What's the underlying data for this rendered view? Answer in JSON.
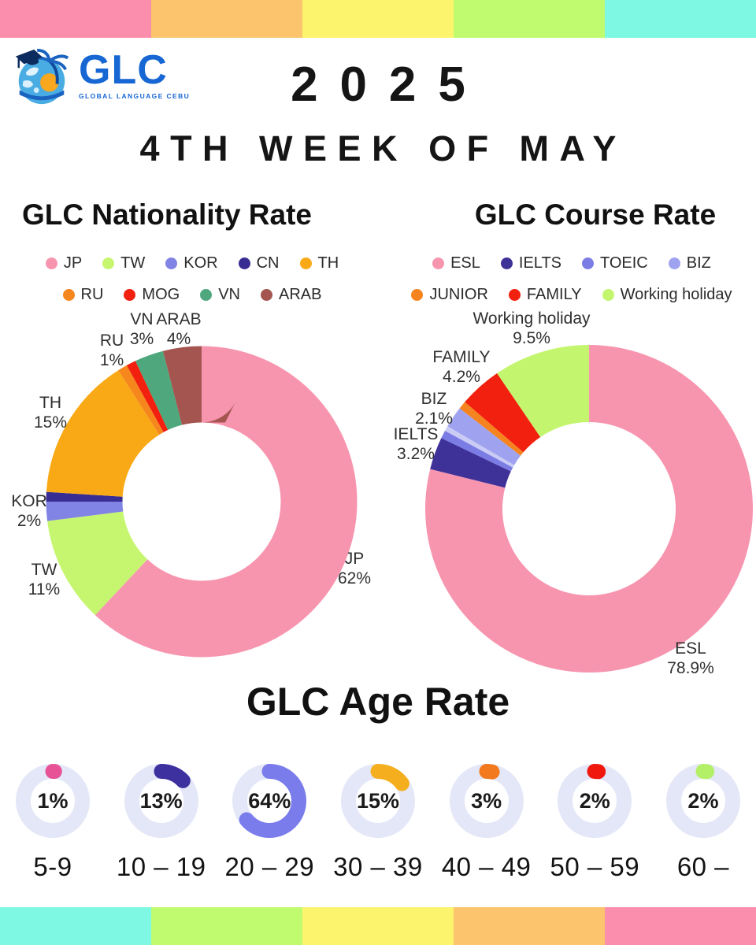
{
  "page": {
    "background": "#FFFFFF"
  },
  "stripes": {
    "top": [
      "#FA8EAC",
      "#FBC46D",
      "#FCF46C",
      "#C0FA6E",
      "#7EF8E2"
    ],
    "bottom": [
      "#7EF8E2",
      "#C0FA6E",
      "#FCF46C",
      "#FBC46D",
      "#FA8EAC"
    ]
  },
  "header": {
    "logo_text": "GLC",
    "logo_subtext": "GLOBAL LANGUAGE CEBU",
    "logo_color": "#1666D3",
    "year": "2025",
    "subtitle": "4TH WEEK OF MAY"
  },
  "chart_data": [
    {
      "id": "nationality",
      "type": "pie",
      "variant": "donut",
      "title": "GLC Nationality Rate",
      "start_angle_deg": 0,
      "direction": "clockwise",
      "hole_ratio": 0.51,
      "legend": [
        {
          "label": "JP",
          "color": "#F795AF"
        },
        {
          "label": "TW",
          "color": "#C6F66F"
        },
        {
          "label": "KOR",
          "color": "#8184E4"
        },
        {
          "label": "CN",
          "color": "#372D92"
        },
        {
          "label": "TH",
          "color": "#FAA916"
        },
        {
          "label": "RU",
          "color": "#F6871D"
        },
        {
          "label": "MOG",
          "color": "#F2200E"
        },
        {
          "label": "VN",
          "color": "#4FA87D"
        },
        {
          "label": "ARAB",
          "color": "#A4554F"
        }
      ],
      "segments": [
        {
          "label": "JP",
          "value": 62,
          "pct_text": "62%",
          "color": "#F795AF",
          "label_shown": true
        },
        {
          "label": "TW",
          "value": 11,
          "pct_text": "11%",
          "color": "#C6F66F",
          "label_shown": true
        },
        {
          "label": "KOR",
          "value": 2,
          "pct_text": "2%",
          "color": "#8184E4",
          "label_shown": true
        },
        {
          "label": "CN",
          "value": 1,
          "pct_text": "",
          "color": "#372D92",
          "label_shown": false
        },
        {
          "label": "TH",
          "value": 15,
          "pct_text": "15%",
          "color": "#FAA916",
          "label_shown": true
        },
        {
          "label": "RU",
          "value": 1,
          "pct_text": "1%",
          "color": "#F6871D",
          "label_shown": true
        },
        {
          "label": "MOG",
          "value": 1,
          "pct_text": "",
          "color": "#F2200E",
          "label_shown": false
        },
        {
          "label": "VN",
          "value": 3,
          "pct_text": "3%",
          "color": "#4FA87D",
          "label_shown": true
        },
        {
          "label": "ARAB",
          "value": 4,
          "pct_text": "4%",
          "color": "#A4554F",
          "label_shown": true
        }
      ]
    },
    {
      "id": "course",
      "type": "pie",
      "variant": "donut",
      "title": "GLC Course Rate",
      "start_angle_deg": 0,
      "direction": "clockwise",
      "hole_ratio": 0.53,
      "legend": [
        {
          "label": "ESL",
          "color": "#F795AF"
        },
        {
          "label": "IELTS",
          "color": "#3E3198"
        },
        {
          "label": "TOEIC",
          "color": "#7B7DE4"
        },
        {
          "label": "BIZ",
          "color": "#9FA3EF"
        },
        {
          "label": "JUNIOR",
          "color": "#F5831F"
        },
        {
          "label": "FAMILY",
          "color": "#F2200E"
        },
        {
          "label": "Working holiday",
          "color": "#C3F66E"
        }
      ],
      "segments": [
        {
          "label": "ESL",
          "value": 78.9,
          "pct_text": "78.9%",
          "color": "#F795AF",
          "label_shown": true
        },
        {
          "label": "IELTS",
          "value": 3.2,
          "pct_text": "3.2%",
          "color": "#3E3198",
          "label_shown": true
        },
        {
          "label": "TOEIC",
          "value": 0.8,
          "pct_text": "",
          "color": "#7B7DE4",
          "label_shown": false
        },
        {
          "label": "",
          "value": 0.5,
          "pct_text": "",
          "color": "#CACCF6",
          "label_shown": false
        },
        {
          "label": "BIZ",
          "value": 2.1,
          "pct_text": "2.1%",
          "color": "#9FA3EF",
          "label_shown": true
        },
        {
          "label": "JUNIOR",
          "value": 0.8,
          "pct_text": "",
          "color": "#F5831F",
          "label_shown": false
        },
        {
          "label": "FAMILY",
          "value": 4.2,
          "pct_text": "4.2%",
          "color": "#F2200E",
          "label_shown": true
        },
        {
          "label": "Working holiday",
          "value": 9.5,
          "pct_text": "9.5%",
          "color": "#C3F66E",
          "label_shown": true
        }
      ]
    },
    {
      "id": "age",
      "type": "pie",
      "variant": "gauge-row",
      "title": "GLC Age Rate",
      "categories": [
        "5-9",
        "10 – 19",
        "20 – 29",
        "30 – 39",
        "40 – 49",
        "50 – 59",
        "60 –"
      ],
      "values": [
        1,
        13,
        64,
        15,
        3,
        2,
        2
      ],
      "value_labels": [
        "1%",
        "13%",
        "64%",
        "15%",
        "3%",
        "2%",
        "2%"
      ],
      "colors": [
        "#E75297",
        "#3D309F",
        "#7A7CEC",
        "#F5AF1E",
        "#F2791D",
        "#F0170D",
        "#B3EF67"
      ],
      "track_color": "#E4E7F7",
      "start_angle_deg": 0,
      "direction": "clockwise"
    }
  ]
}
